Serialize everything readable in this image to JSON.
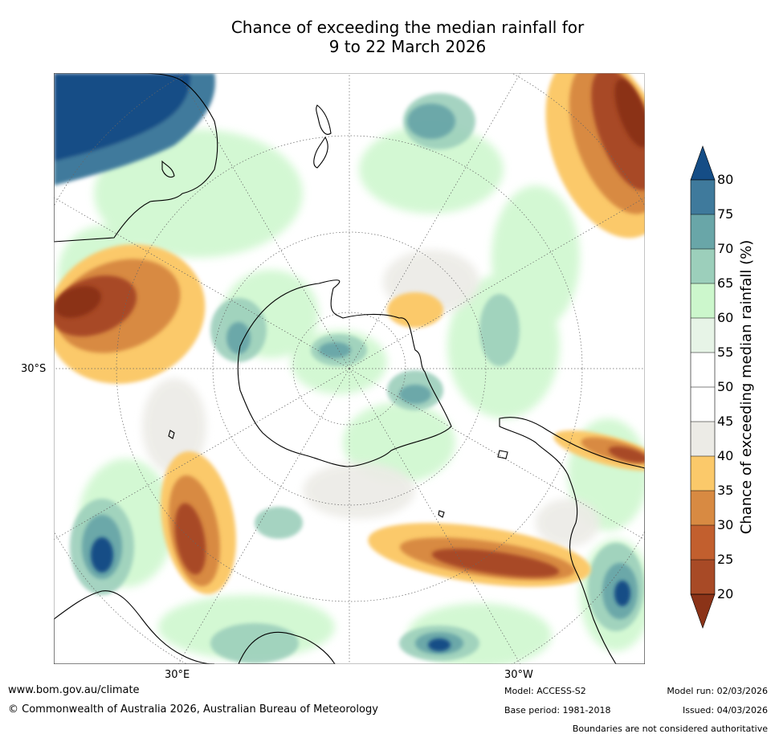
{
  "title_line1": "Chance of exceeding the median rainfall for",
  "title_line2": "9 to 22 March 2026",
  "map_labels": {
    "lat": "30°S",
    "lon_east": "30°E",
    "lon_west": "30°W"
  },
  "colorbar": {
    "title": "Chance of exceeding median rainfall (%)",
    "ticks": [
      "20",
      "25",
      "30",
      "35",
      "40",
      "45",
      "50",
      "55",
      "60",
      "65",
      "70",
      "75",
      "80"
    ],
    "colors": {
      "below_20": "#8b3318",
      "20-25": "#a84a26",
      "25-30": "#c25f2e",
      "30-35": "#d88a42",
      "35-40": "#fbc96a",
      "40-45": "#ecebe6",
      "45-50": "#ffffff",
      "50-55": "#ffffff",
      "55-60": "#e7f4e7",
      "60-65": "#ccf7cc",
      "65-70": "#9ccfbb",
      "70-75": "#69a6a8",
      "75-80": "#3f7a9c",
      "above_80": "#154d86"
    }
  },
  "footer": {
    "url": "www.bom.gov.au/climate",
    "copyright": "© Commonwealth of Australia 2026, Australian Bureau of Meteorology",
    "model": "Model: ACCESS-S2",
    "base_period": "Base period: 1981-2018",
    "model_run": "Model run: 02/03/2026",
    "issued": "Issued: 04/03/2026",
    "disclaimer": "Boundaries are not considered authoritative"
  }
}
